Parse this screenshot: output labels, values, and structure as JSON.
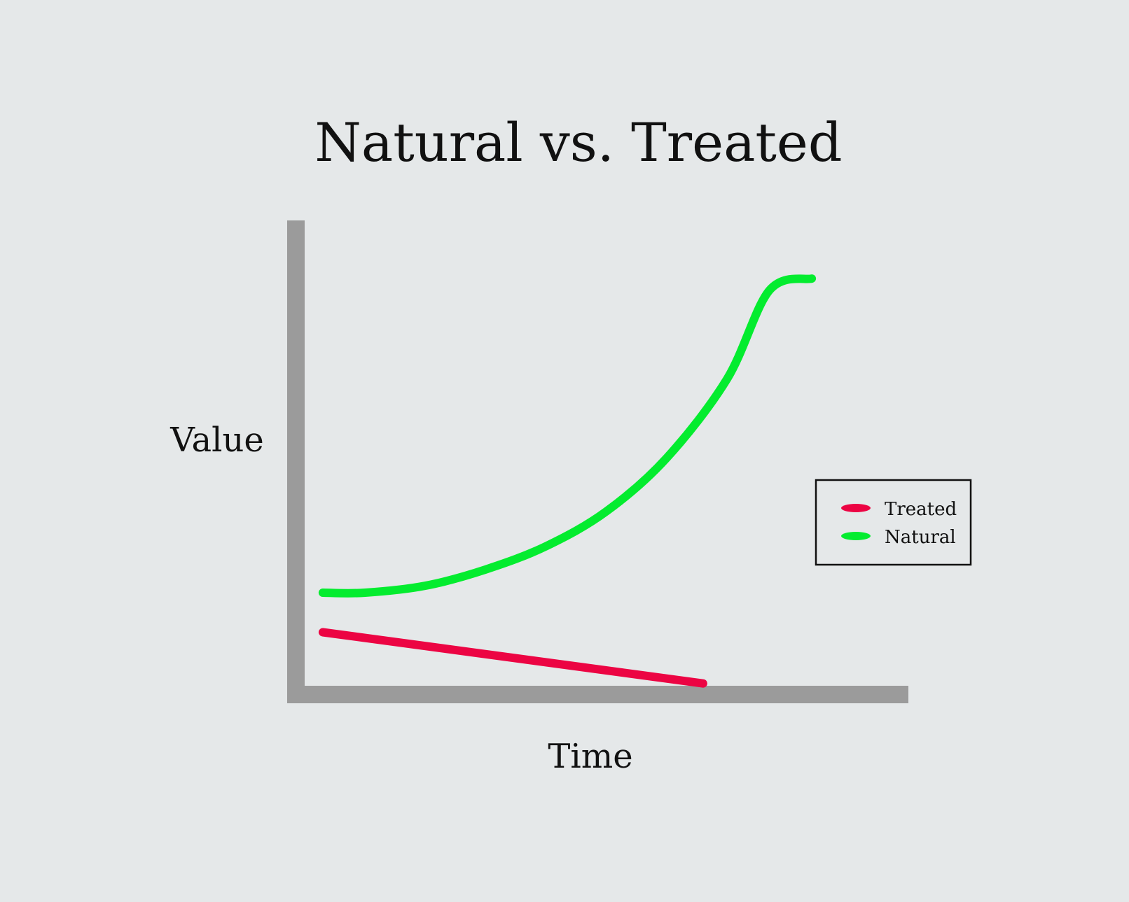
{
  "chart_data": {
    "type": "line",
    "title": "Natural vs. Treated",
    "xlabel": "Time",
    "ylabel": "Value",
    "xlim": [
      0,
      10
    ],
    "ylim": [
      0,
      10
    ],
    "ticks_shown": false,
    "grid": false,
    "legend_position": "right",
    "axis_color": "#9b9b9b",
    "background_color": "#e5e8e9",
    "series": [
      {
        "name": "Treated",
        "color": "#ec0443",
        "points": [
          [
            0.3,
            1.15
          ],
          [
            6.6,
            0.05
          ]
        ]
      },
      {
        "name": "Natural",
        "color": "#04ec2f",
        "points": [
          [
            0.3,
            2.0
          ],
          [
            1.0,
            2.0
          ],
          [
            2.0,
            2.15
          ],
          [
            3.0,
            2.5
          ],
          [
            4.0,
            3.0
          ],
          [
            5.0,
            3.75
          ],
          [
            6.0,
            4.9
          ],
          [
            7.0,
            6.6
          ],
          [
            7.7,
            8.5
          ],
          [
            8.4,
            8.75
          ]
        ]
      }
    ]
  }
}
